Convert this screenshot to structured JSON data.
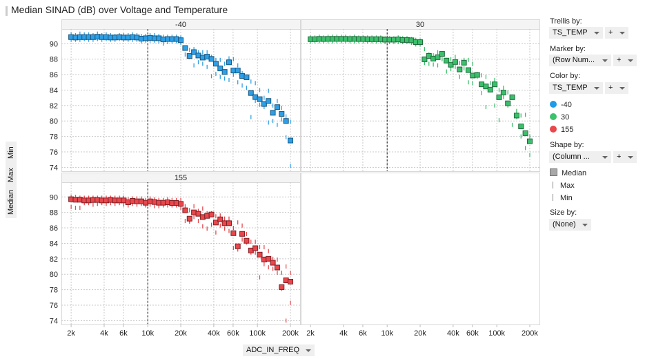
{
  "title": "Median SINAD (dB) over Voltage and Temperature",
  "y_axis_buttons": [
    "Min",
    "Max",
    "Median"
  ],
  "x_axis_button": "ADC_IN_FREQ",
  "sidebar": {
    "trellis_label": "Trellis by:",
    "trellis_value": "TS_TEMP",
    "marker_label": "Marker by:",
    "marker_value": "(Row Num...",
    "color_label": "Color by:",
    "color_value": "TS_TEMP",
    "shape_label": "Shape by:",
    "shape_value": "(Column ...",
    "size_label": "Size by:",
    "size_value": "(None)",
    "plus": "+",
    "color_legend": [
      {
        "label": "-40",
        "color": "#1e9be9"
      },
      {
        "label": "30",
        "color": "#3cc26a"
      },
      {
        "label": "155",
        "color": "#e8474c"
      }
    ],
    "shape_legend": [
      {
        "label": "Median",
        "shape": "square"
      },
      {
        "label": "Max",
        "shape": "vertical-line"
      },
      {
        "label": "Min",
        "shape": "vertical-line"
      }
    ]
  },
  "chart_data": {
    "type": "scatter",
    "title": "Median SINAD (dB) over Voltage and Temperature",
    "xlabel": "ADC_IN_FREQ",
    "ylabel": "",
    "x_scale": "log",
    "xlim": [
      1630,
      245000
    ],
    "ylim": [
      73.5,
      91.9
    ],
    "x_ticks": [
      2000,
      4000,
      6000,
      10000,
      20000,
      40000,
      60000,
      100000,
      200000
    ],
    "x_tick_labels": [
      "2k",
      "4k",
      "6k",
      "10k",
      "20k",
      "40k",
      "60k",
      "100k",
      "200k"
    ],
    "y_ticks": [
      74,
      76,
      78,
      80,
      82,
      84,
      86,
      88,
      90
    ],
    "y_tick_labels": [
      "74",
      "76",
      "78",
      "80",
      "82",
      "84",
      "86",
      "88",
      "90"
    ],
    "grid": true,
    "reference_line_x": 10000,
    "legend_position": "right",
    "trellis_by": "TS_TEMP",
    "x": [
      2000,
      2193,
      2405,
      2637,
      2891,
      3170,
      3476,
      3811,
      4179,
      4582,
      5024,
      5509,
      6040,
      6623,
      7262,
      7962,
      8731,
      9573,
      10497,
      11510,
      12619,
      13837,
      15172,
      16636,
      18241,
      20000,
      21930,
      24046,
      26367,
      28912,
      31698,
      34757,
      38110,
      41787,
      45819,
      50238,
      55085,
      60398,
      66226,
      72614,
      79621,
      87302,
      95727,
      104961,
      115088,
      126191,
      138366,
      151716,
      166353,
      182402,
      200000
    ],
    "panels": [
      {
        "label": "-40",
        "color": "#2e9fe6",
        "edge": "#17577f",
        "median": [
          90.85,
          90.8,
          90.85,
          90.85,
          90.85,
          90.85,
          90.9,
          90.85,
          90.85,
          90.8,
          90.8,
          90.85,
          90.8,
          90.8,
          90.85,
          90.8,
          90.65,
          90.7,
          90.75,
          90.7,
          90.7,
          90.55,
          90.6,
          90.6,
          90.6,
          90.45,
          89.44,
          88.41,
          88.91,
          88.47,
          88.2,
          88.32,
          88.03,
          87.41,
          86.8,
          86.35,
          87.59,
          86.53,
          86.53,
          85.82,
          85.65,
          83.62,
          83.09,
          82.82,
          82.2,
          82.59,
          81.06,
          81.79,
          80.91,
          80.0,
          77.47
        ],
        "max": [
          91.2,
          91.1,
          91.3,
          91.2,
          91.2,
          91.1,
          91.3,
          91.1,
          91.2,
          91.1,
          91.0,
          91.1,
          91.1,
          91.1,
          91.2,
          91.1,
          91.0,
          91.0,
          91.1,
          91.1,
          91.0,
          90.9,
          90.9,
          90.9,
          90.9,
          90.8,
          89.5,
          89.2,
          89.3,
          88.9,
          88.9,
          88.9,
          88.3,
          87.9,
          87.9,
          87.4,
          88.1,
          88.0,
          87.2,
          86.2,
          85.6,
          85.1,
          84.9,
          84.0,
          83.0,
          83.9,
          82.0,
          82.6,
          81.7,
          80.6,
          79.9
        ],
        "min": [
          90.5,
          90.5,
          90.5,
          90.6,
          90.5,
          90.5,
          90.6,
          90.5,
          90.6,
          90.5,
          90.5,
          90.6,
          90.5,
          90.5,
          90.5,
          90.5,
          90.3,
          90.4,
          90.4,
          90.4,
          90.3,
          90.0,
          90.2,
          90.3,
          90.3,
          90.1,
          88.6,
          88.3,
          87.2,
          87.6,
          87.4,
          87.0,
          85.8,
          86.1,
          85.7,
          85.5,
          85.3,
          86.0,
          85.0,
          84.6,
          84.3,
          80.5,
          82.6,
          82.1,
          81.8,
          79.8,
          80.0,
          79.5,
          80.2,
          77.9,
          74.2
        ]
      },
      {
        "label": "30",
        "color": "#3cbf6c",
        "edge": "#1d6b3a",
        "median": [
          90.58,
          90.58,
          90.62,
          90.6,
          90.62,
          90.62,
          90.62,
          90.62,
          90.62,
          90.6,
          90.62,
          90.6,
          90.6,
          90.58,
          90.58,
          90.58,
          90.58,
          90.52,
          90.52,
          90.52,
          90.55,
          90.48,
          90.48,
          90.44,
          90.2,
          90.2,
          87.98,
          88.42,
          88.07,
          88.25,
          88.68,
          87.81,
          87.28,
          87.63,
          86.67,
          87.54,
          86.58,
          85.88,
          85.96,
          84.74,
          84.47,
          84.06,
          84.74,
          83.07,
          83.68,
          82.28,
          83.07,
          80.7,
          79.3,
          78.42,
          77.37
        ],
        "max": [
          90.8,
          90.8,
          90.9,
          90.8,
          90.9,
          90.9,
          90.9,
          90.9,
          90.9,
          90.8,
          90.9,
          90.8,
          90.8,
          90.8,
          90.8,
          90.8,
          90.8,
          90.7,
          90.7,
          90.7,
          90.8,
          90.7,
          90.7,
          90.6,
          90.5,
          90.4,
          89.3,
          88.6,
          88.5,
          88.9,
          88.7,
          87.9,
          88.0,
          88.3,
          87.5,
          87.9,
          87.9,
          87.4,
          86.1,
          85.9,
          85.7,
          84.9,
          85.3,
          84.0,
          84.3,
          83.7,
          83.1,
          81.3,
          80.7,
          80.8,
          78.0
        ],
        "min": [
          90.3,
          90.3,
          90.3,
          90.3,
          90.3,
          90.3,
          90.3,
          90.3,
          90.3,
          90.3,
          90.3,
          90.3,
          90.3,
          90.3,
          90.3,
          90.3,
          90.3,
          90.2,
          90.2,
          90.2,
          90.2,
          90.2,
          90.2,
          90.1,
          89.9,
          89.9,
          87.5,
          87.4,
          87.3,
          87.2,
          88.0,
          86.4,
          86.7,
          87.0,
          85.7,
          86.8,
          85.0,
          84.9,
          85.7,
          83.6,
          81.8,
          84.0,
          82.0,
          80.1,
          83.1,
          82.0,
          79.5,
          80.5,
          78.0,
          76.5,
          75.6
        ]
      },
      {
        "label": "155",
        "color": "#e8474c",
        "edge": "#7f1d22",
        "median": [
          89.7,
          89.64,
          89.64,
          89.55,
          89.55,
          89.61,
          89.61,
          89.55,
          89.55,
          89.61,
          89.55,
          89.55,
          89.55,
          89.31,
          89.49,
          89.43,
          89.43,
          89.25,
          89.43,
          89.34,
          89.25,
          89.25,
          89.31,
          89.22,
          89.22,
          89.1,
          88.27,
          87.19,
          88.0,
          87.82,
          87.4,
          87.55,
          87.73,
          86.69,
          87.1,
          86.6,
          86.6,
          85.31,
          83.61,
          85.22,
          84.33,
          83.07,
          83.37,
          82.54,
          81.91,
          82.0,
          81.49,
          80.87,
          78.33,
          79.22,
          79.04
        ],
        "max": [
          90.0,
          90.0,
          89.9,
          89.9,
          89.9,
          89.9,
          89.9,
          89.9,
          89.9,
          89.9,
          89.9,
          89.9,
          89.9,
          89.7,
          89.8,
          89.8,
          89.8,
          89.6,
          89.8,
          89.7,
          89.6,
          89.6,
          89.7,
          89.6,
          89.6,
          89.6,
          88.8,
          88.3,
          88.8,
          88.2,
          88.5,
          87.9,
          87.9,
          87.5,
          87.6,
          87.2,
          87.2,
          86.0,
          86.7,
          86.3,
          85.2,
          84.2,
          84.2,
          83.5,
          83.5,
          83.0,
          82.0,
          81.9,
          80.2,
          81.0,
          80.2
        ],
        "min": [
          88.7,
          88.6,
          88.6,
          89.2,
          89.2,
          89.0,
          89.1,
          89.2,
          89.1,
          89.2,
          89.1,
          89.2,
          89.0,
          88.9,
          89.1,
          89.0,
          89.1,
          88.9,
          89.0,
          88.8,
          88.8,
          88.9,
          88.9,
          88.9,
          88.9,
          88.6,
          86.9,
          86.8,
          87.4,
          86.9,
          86.2,
          85.9,
          86.4,
          85.4,
          86.3,
          85.9,
          85.6,
          83.4,
          83.2,
          84.5,
          84.1,
          82.8,
          82.8,
          79.6,
          81.3,
          80.9,
          80.7,
          80.2,
          78.1,
          74.0,
          76.3
        ]
      }
    ]
  }
}
